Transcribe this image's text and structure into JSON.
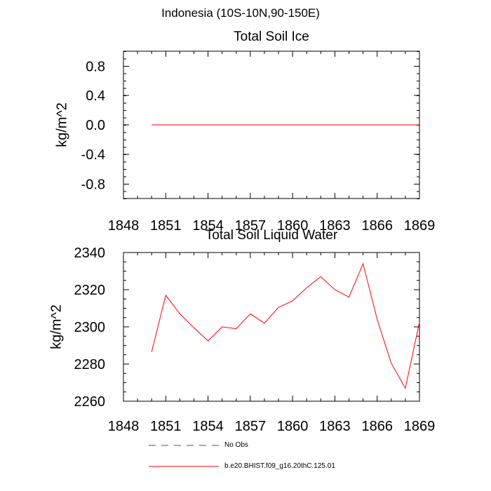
{
  "main_title": "Indonesia (10S-10N,90-150E)",
  "legend": [
    {
      "label": "No Obs",
      "color": "#4a4aa0",
      "dash": "dashed"
    },
    {
      "label": "b.e20.BHIST.f09_g16.20thC.125.01",
      "color": "#ff0000",
      "dash": "solid"
    }
  ],
  "chart_data": [
    {
      "type": "line",
      "title": "Total Soil Ice",
      "xlabel": "",
      "ylabel": "kg/m^2",
      "xlim": [
        1848,
        1869
      ],
      "ylim": [
        -1,
        1
      ],
      "xticks": [
        "1848",
        "1851",
        "1854",
        "1857",
        "1860",
        "1863",
        "1866",
        "1869"
      ],
      "yticks": [
        "0.8",
        "0.4",
        "0.0",
        "-0.4",
        "-0.8"
      ],
      "series": [
        {
          "name": "b.e20.BHIST.f09_g16.20thC.125.01",
          "color": "#ff0000",
          "x": [
            1850,
            1851,
            1852,
            1853,
            1854,
            1855,
            1856,
            1857,
            1858,
            1859,
            1860,
            1861,
            1862,
            1863,
            1864,
            1865,
            1866,
            1867,
            1868,
            1869
          ],
          "y": [
            0,
            0,
            0,
            0,
            0,
            0,
            0,
            0,
            0,
            0,
            0,
            0,
            0,
            0,
            0,
            0,
            0,
            0,
            0,
            0
          ]
        }
      ]
    },
    {
      "type": "line",
      "title": "Total Soil Liquid Water",
      "xlabel": "",
      "ylabel": "kg/m^2",
      "xlim": [
        1848,
        1869
      ],
      "ylim": [
        2260,
        2340
      ],
      "xticks": [
        "1848",
        "1851",
        "1854",
        "1857",
        "1860",
        "1863",
        "1866",
        "1869"
      ],
      "yticks": [
        "2340",
        "2320",
        "2300",
        "2280",
        "2260"
      ],
      "series": [
        {
          "name": "b.e20.BHIST.f09_g16.20thC.125.01",
          "color": "#ff0000",
          "x": [
            1850,
            1851,
            1852,
            1853,
            1854,
            1855,
            1856,
            1857,
            1858,
            1859,
            1860,
            1861,
            1862,
            1863,
            1864,
            1865,
            1866,
            1867,
            1868,
            1869
          ],
          "y": [
            2286.5,
            2317,
            2307,
            2299.5,
            2292.5,
            2300,
            2299,
            2307,
            2302,
            2310.5,
            2314,
            2321,
            2327,
            2320,
            2316,
            2334,
            2304,
            2280.5,
            2267,
            2302.5
          ]
        }
      ]
    }
  ]
}
